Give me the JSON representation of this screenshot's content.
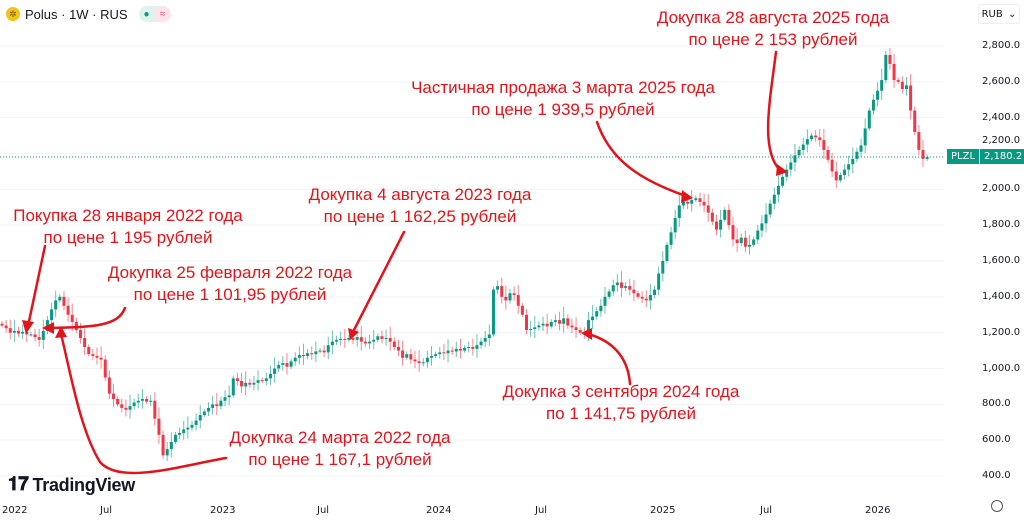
{
  "header": {
    "symbol_title": "Polus · 1W · RUS",
    "logo_icon": "polus-logo-icon",
    "status_icons": [
      "market-open-dot-icon",
      "delayed-data-icon"
    ]
  },
  "currency_button": {
    "label": "RUB",
    "icon": "chevron-down-icon"
  },
  "price_label": {
    "ticker": "PLZL",
    "value": "2,180.2"
  },
  "brand": "TradingView",
  "colors": {
    "up": "#089981",
    "down": "#f23645",
    "annotation": "#e0141b",
    "grid": "#f0f3fa"
  },
  "annotations": [
    {
      "line1": "Покупка 28 января 2022 года",
      "line2": "по цене 1 195 рублей"
    },
    {
      "line1": "Докупка 25 февраля 2022 года",
      "line2": "по цене 1 101,95 рублей"
    },
    {
      "line1": "Докупка 4 августа 2023 года",
      "line2": "по цене 1 162,25 рублей"
    },
    {
      "line1": "Частичная продажа 3 марта 2025 года",
      "line2": "по цене 1 939,5 рублей"
    },
    {
      "line1": "Докупка 28 августа 2025 года",
      "line2": "по цене 2 153 рублей"
    },
    {
      "line1": "Докупка 24 марта 2022 года",
      "line2": "по цене 1 167,1 рублей"
    },
    {
      "line1": "Докупка 3 сентября 2024 года",
      "line2": "по 1 141,75 рублей"
    }
  ],
  "chart_data": {
    "type": "candlestick",
    "interval": "1W",
    "ylim": [
      400,
      2800
    ],
    "y_ticks": [
      "2,800.0",
      "2,600.0",
      "2,400.0",
      "2,200.0",
      "2,000.0",
      "1,800.0",
      "1,600.0",
      "1,400.0",
      "1,200.0",
      "1,000.0",
      "800.0",
      "600.0",
      "400.0"
    ],
    "x_ticks": [
      "2022",
      "Jul",
      "2023",
      "Jul",
      "2024",
      "Jul",
      "2025",
      "Jul",
      "2026"
    ],
    "grid": true,
    "last_price": 2180.2,
    "closes": [
      1240,
      1225,
      1200,
      1210,
      1195,
      1205,
      1190,
      1190,
      1175,
      1160,
      1210,
      1270,
      1330,
      1380,
      1400,
      1350,
      1300,
      1260,
      1215,
      1170,
      1120,
      1080,
      1070,
      1060,
      1050,
      950,
      860,
      830,
      800,
      780,
      770,
      790,
      810,
      820,
      830,
      815,
      820,
      720,
      630,
      515,
      550,
      590,
      630,
      640,
      660,
      670,
      685,
      710,
      740,
      760,
      780,
      800,
      790,
      820,
      840,
      850,
      945,
      930,
      900,
      920,
      910,
      920,
      935,
      930,
      945,
      970,
      1000,
      1020,
      1030,
      1010,
      1040,
      1060,
      1075,
      1070,
      1085,
      1080,
      1095,
      1100,
      1090,
      1130,
      1150,
      1160,
      1165,
      1160,
      1170,
      1160,
      1175,
      1150,
      1140,
      1150,
      1160,
      1180,
      1165,
      1170,
      1150,
      1120,
      1100,
      1060,
      1080,
      1050,
      1040,
      1030,
      1035,
      1060,
      1070,
      1080,
      1090,
      1085,
      1100,
      1095,
      1110,
      1100,
      1115,
      1120,
      1110,
      1130,
      1150,
      1170,
      1190,
      1440,
      1460,
      1400,
      1380,
      1420,
      1410,
      1350,
      1300,
      1215,
      1220,
      1230,
      1240,
      1250,
      1235,
      1260,
      1270,
      1250,
      1280,
      1240,
      1230,
      1215,
      1200,
      1190,
      1270,
      1290,
      1320,
      1350,
      1400,
      1430,
      1465,
      1480,
      1450,
      1460,
      1440,
      1420,
      1400,
      1390,
      1380,
      1410,
      1440,
      1530,
      1600,
      1690,
      1760,
      1840,
      1910,
      1930,
      1920,
      1940,
      1950,
      1930,
      1910,
      1870,
      1820,
      1775,
      1830,
      1885,
      1800,
      1720,
      1700,
      1730,
      1680,
      1690,
      1720,
      1770,
      1810,
      1860,
      1920,
      1970,
      2020,
      2070,
      2110,
      2150,
      2190,
      2220,
      2250,
      2280,
      2300,
      2290,
      2275,
      2220,
      2165,
      2100,
      2050,
      2080,
      2110,
      2140,
      2170,
      2210,
      2245,
      2340,
      2440,
      2500,
      2550,
      2610,
      2750,
      2700,
      2610,
      2600,
      2560,
      2580,
      2440,
      2320,
      2220,
      2170,
      2180.2
    ]
  }
}
